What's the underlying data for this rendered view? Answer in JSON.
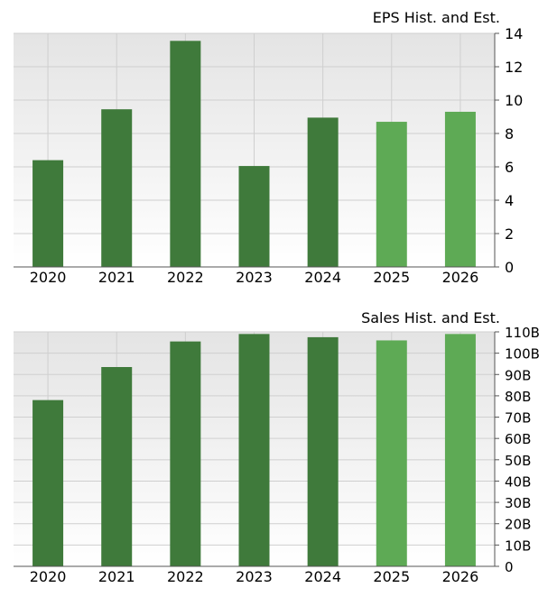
{
  "chart_data": [
    {
      "type": "bar",
      "title": "EPS Hist. and Est.",
      "categories": [
        "2020",
        "2021",
        "2022",
        "2023",
        "2024",
        "2025",
        "2026"
      ],
      "values": [
        6.4,
        9.45,
        13.55,
        6.05,
        8.95,
        8.7,
        9.3
      ],
      "estimate_flags": [
        false,
        false,
        false,
        false,
        false,
        true,
        true
      ],
      "ylim": [
        0,
        14
      ],
      "yticks": [
        "0",
        "2",
        "4",
        "6",
        "8",
        "10",
        "12",
        "14"
      ],
      "grid": true
    },
    {
      "type": "bar",
      "title": "Sales Hist. and Est.",
      "categories": [
        "2020",
        "2021",
        "2022",
        "2023",
        "2024",
        "2025",
        "2026"
      ],
      "values": [
        78,
        93.5,
        105.5,
        109,
        107.5,
        106,
        109
      ],
      "estimate_flags": [
        false,
        false,
        false,
        false,
        false,
        true,
        true
      ],
      "ylim": [
        0,
        110
      ],
      "yticks": [
        "0",
        "10B",
        "20B",
        "30B",
        "40B",
        "50B",
        "60B",
        "70B",
        "80B",
        "90B",
        "100B",
        "110B"
      ],
      "unit": "B",
      "grid": true
    }
  ],
  "colors": {
    "historical": "#3f7a3b",
    "estimate": "#5eaa55",
    "grid": "#cfcfcf",
    "plot_bg_top": "#e4e4e4",
    "plot_bg_bottom": "#ffffff"
  }
}
